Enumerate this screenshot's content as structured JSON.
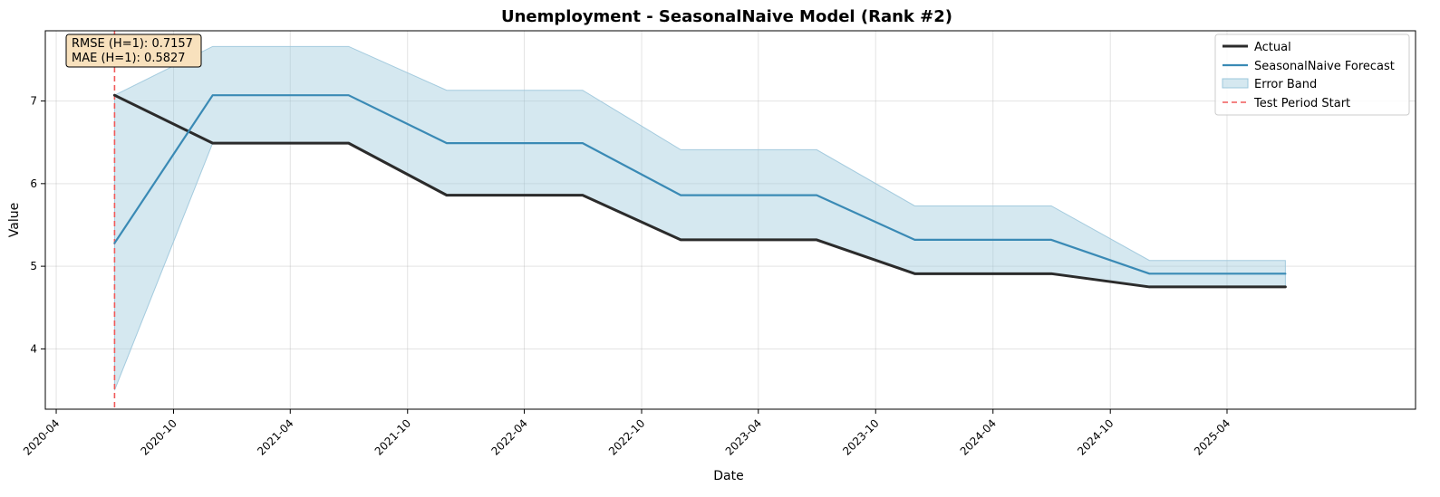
{
  "chart_data": {
    "type": "line",
    "title": "Unemployment - SeasonalNaive Model (Rank #2)",
    "xlabel": "Date",
    "ylabel": "Value",
    "x": [
      "2020-07-01",
      "2020-12-01",
      "2021-07-01",
      "2021-12-01",
      "2022-07-01",
      "2022-12-01",
      "2023-07-01",
      "2023-12-01",
      "2024-07-01",
      "2024-12-01",
      "2025-07-01"
    ],
    "series": [
      {
        "name": "Actual",
        "color": "#2b2b2b",
        "values": [
          7.07,
          6.49,
          6.49,
          5.86,
          5.86,
          5.32,
          5.32,
          4.91,
          4.91,
          4.75,
          4.75
        ]
      },
      {
        "name": "SeasonalNaive Forecast",
        "color": "#3a8ab5",
        "values": [
          5.28,
          7.07,
          7.07,
          6.49,
          6.49,
          5.86,
          5.86,
          5.32,
          5.32,
          4.91,
          4.91
        ]
      }
    ],
    "band": {
      "name": "Error Band",
      "color": "#9cc7dc",
      "lower": [
        3.5,
        6.49,
        6.49,
        5.86,
        5.86,
        5.32,
        5.32,
        4.91,
        4.91,
        4.75,
        4.75
      ],
      "upper": [
        7.07,
        7.66,
        7.66,
        7.13,
        7.13,
        6.41,
        6.41,
        5.73,
        5.73,
        5.07,
        5.07
      ]
    },
    "vline": {
      "name": "Test Period Start",
      "x": "2020-07-01",
      "color": "#f05a5a"
    },
    "xticks": [
      "2020-04",
      "2020-10",
      "2021-04",
      "2021-10",
      "2022-04",
      "2022-10",
      "2023-04",
      "2023-10",
      "2024-04",
      "2024-10",
      "2025-04"
    ],
    "yticks": [
      4,
      5,
      6,
      7
    ],
    "xlim": [
      "2020-03-15",
      "2026-01-20"
    ],
    "ylim": [
      3.27,
      7.85
    ],
    "grid": true,
    "legend_position": "top-right",
    "metrics_box": {
      "line1": "RMSE (H=1): 0.7157",
      "line2": "MAE (H=1): 0.5827"
    }
  }
}
